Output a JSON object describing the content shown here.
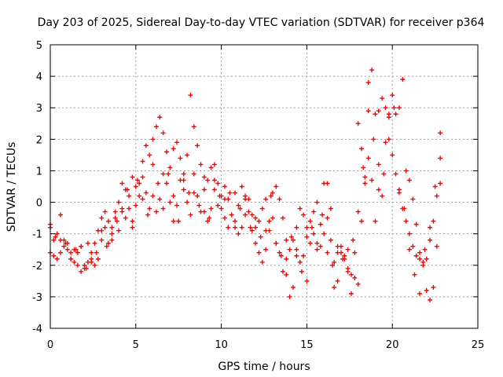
{
  "chart_data": {
    "type": "scatter",
    "title": "Day 203 of 2025, Sidereal Day-to-day VTEC variation (SDTVAR) for receiver p364",
    "xlabel": "GPS time / hours",
    "ylabel": "SDTVAR / TECUs",
    "xlim": [
      0,
      25
    ],
    "ylim": [
      -4,
      5
    ],
    "xticks": [
      0,
      5,
      10,
      15,
      20,
      25
    ],
    "yticks": [
      -4,
      -3,
      -2,
      -1,
      0,
      1,
      2,
      3,
      4,
      5
    ],
    "grid": true,
    "marker": "+",
    "series": [
      {
        "name": "SDTVAR",
        "color": "#ff0000",
        "x": [
          0.0,
          0.2,
          0.4,
          0.6,
          0.8,
          1.0,
          1.2,
          1.4,
          1.6,
          1.8,
          2.0,
          2.2,
          2.4,
          2.6,
          2.8,
          3.0,
          3.2,
          3.4,
          3.6,
          3.8,
          4.0,
          4.2,
          4.4,
          4.6,
          4.8,
          5.0,
          5.2,
          5.4,
          5.6,
          5.8,
          6.0,
          6.2,
          6.4,
          6.6,
          6.8,
          7.0,
          7.2,
          7.4,
          7.6,
          7.8,
          8.0,
          8.2,
          8.4,
          8.6,
          8.8,
          9.0,
          9.2,
          9.4,
          9.6,
          9.8,
          10.0,
          10.2,
          10.4,
          10.6,
          10.8,
          11.0,
          11.2,
          11.4,
          11.6,
          11.8,
          12.0,
          12.2,
          12.4,
          12.6,
          12.8,
          13.0,
          13.2,
          13.4,
          13.6,
          13.8,
          14.0,
          14.2,
          14.4,
          14.6,
          14.8,
          15.0,
          15.2,
          15.4,
          15.6,
          15.8,
          16.0,
          16.2,
          16.4,
          16.6,
          16.8,
          17.0,
          17.2,
          17.4,
          17.6,
          17.8,
          18.0,
          18.2,
          18.4,
          18.6,
          18.8,
          19.0,
          19.2,
          19.4,
          19.6,
          19.8,
          20.0,
          20.2,
          20.4,
          20.6,
          20.8,
          21.0,
          21.2,
          21.4,
          21.6,
          21.8,
          22.0,
          22.2,
          22.4,
          22.6,
          22.8,
          0.0,
          0.2,
          0.4,
          0.6,
          0.8,
          1.0,
          1.2,
          1.4,
          1.6,
          1.8,
          2.0,
          2.2,
          2.4,
          2.6,
          2.8,
          3.0,
          3.2,
          3.4,
          3.6,
          3.8,
          4.0,
          4.2,
          4.4,
          4.6,
          4.8,
          5.0,
          5.2,
          5.4,
          5.6,
          5.8,
          6.0,
          6.2,
          6.4,
          6.6,
          6.8,
          7.0,
          7.2,
          7.4,
          7.6,
          7.8,
          8.0,
          8.2,
          8.4,
          8.6,
          8.8,
          9.0,
          9.2,
          9.4,
          9.6,
          9.8,
          10.0,
          10.2,
          10.4,
          10.6,
          10.8,
          11.0,
          11.2,
          11.4,
          11.6,
          11.8,
          12.0,
          12.2,
          12.4,
          12.6,
          12.8,
          13.0,
          13.2,
          13.4,
          13.6,
          13.8,
          14.0,
          14.2,
          14.4,
          14.6,
          14.8,
          15.0,
          15.2,
          15.4,
          15.6,
          15.8,
          16.0,
          16.2,
          16.4,
          16.6,
          16.8,
          17.0,
          17.2,
          17.4,
          17.6,
          17.8,
          18.0,
          18.2,
          18.4,
          18.6,
          18.8,
          19.0,
          19.2,
          19.4,
          19.6,
          19.8,
          20.0,
          20.2,
          20.4,
          20.6,
          20.8,
          21.0,
          21.2,
          21.4,
          21.6,
          21.8,
          22.0,
          22.2,
          22.4,
          22.6,
          22.8,
          0.0,
          0.3,
          0.6,
          0.9,
          1.2,
          1.5,
          1.8,
          2.1,
          2.4,
          2.7,
          3.0,
          3.3,
          3.6,
          3.9,
          4.2,
          4.5,
          4.8,
          5.1,
          5.4,
          5.7,
          6.0,
          6.3,
          6.6,
          6.9,
          7.2,
          7.5,
          7.8,
          8.1,
          8.4,
          8.7,
          9.0,
          9.3,
          9.6,
          9.9,
          10.2,
          10.5,
          10.8,
          11.1,
          11.4,
          11.7,
          12.0,
          12.3,
          12.6,
          12.9,
          13.2,
          13.5,
          13.8,
          14.1,
          14.4,
          14.7,
          15.0,
          15.3,
          15.6,
          15.9,
          16.2,
          16.5,
          16.8,
          17.1,
          17.4,
          17.7,
          18.0,
          18.3,
          18.6,
          18.9,
          19.2,
          19.5,
          19.8,
          20.1,
          20.4,
          20.7,
          21.0,
          21.3,
          21.6,
          21.9,
          22.2,
          22.5,
          22.8
        ],
        "y": [
          -0.7,
          -1.2,
          -1.0,
          -0.4,
          -1.2,
          -1.5,
          -1.8,
          -1.9,
          -1.6,
          -1.4,
          -2.1,
          -1.9,
          -1.6,
          -1.3,
          -0.9,
          -0.5,
          -0.3,
          -0.6,
          -0.8,
          -0.3,
          0.0,
          0.6,
          0.4,
          -0.2,
          -0.6,
          -0.1,
          0.6,
          1.3,
          1.8,
          1.5,
          2.0,
          2.4,
          2.7,
          2.2,
          1.6,
          1.1,
          1.7,
          1.9,
          1.4,
          0.9,
          1.5,
          3.4,
          2.4,
          1.8,
          1.2,
          0.8,
          0.7,
          1.1,
          1.2,
          0.6,
          -0.2,
          0.5,
          0.1,
          -0.4,
          -0.8,
          -1.0,
          0.5,
          0.2,
          -0.3,
          -0.9,
          -1.3,
          -1.6,
          -1.9,
          -1.5,
          -0.6,
          0.3,
          0.5,
          0.1,
          -0.5,
          -1.2,
          -3.0,
          -2.7,
          -1.5,
          -0.2,
          -0.4,
          -0.8,
          -0.6,
          -0.3,
          0.0,
          -0.7,
          0.6,
          -0.5,
          -1.2,
          -2.7,
          -2.5,
          -1.6,
          -1.8,
          -1.5,
          -2.9,
          -1.6,
          2.5,
          1.7,
          0.6,
          3.8,
          4.2,
          2.8,
          2.9,
          3.3,
          3.0,
          2.7,
          3.4,
          2.8,
          3.0,
          3.9,
          -0.6,
          -1.0,
          -1.4,
          -1.7,
          -1.8,
          -2.0,
          -2.8,
          -3.1,
          -2.7,
          -1.4,
          2.2,
          -1.6,
          -1.7,
          -1.8,
          -1.2,
          -1.4,
          -1.3,
          -1.6,
          -1.5,
          -2.0,
          -2.2,
          -2.0,
          -1.3,
          -1.9,
          -2.0,
          -1.8,
          -1.2,
          -0.8,
          -1.3,
          -1.0,
          -0.5,
          -0.9,
          -0.2,
          -0.5,
          0.2,
          0.8,
          0.5,
          0.2,
          0.8,
          0.3,
          -0.2,
          0.2,
          -0.3,
          0.1,
          0.9,
          0.6,
          0.0,
          -0.6,
          -0.1,
          0.7,
          0.4,
          0.0,
          -0.4,
          0.3,
          0.2,
          -0.3,
          -0.3,
          -0.6,
          -0.2,
          0.4,
          -0.1,
          0.2,
          0.1,
          -0.8,
          -0.4,
          0.3,
          -0.1,
          -0.8,
          -0.4,
          0.1,
          -0.4,
          -0.8,
          -0.6,
          -0.2,
          0.1,
          -0.9,
          -0.5,
          -1.3,
          -1.6,
          -2.2,
          -1.8,
          -1.5,
          -1.2,
          -0.8,
          -1.9,
          -1.7,
          -2.5,
          -1.3,
          -1.0,
          -1.3,
          -1.4,
          -1.0,
          0.6,
          -0.2,
          -1.9,
          -1.6,
          -1.4,
          -1.7,
          -2.2,
          -2.3,
          -2.4,
          -0.3,
          -0.6,
          0.8,
          1.4,
          0.7,
          -0.6,
          0.4,
          0.2,
          1.9,
          2.0,
          1.5,
          0.9,
          0.3,
          -0.2,
          1.0,
          0.7,
          0.1,
          -0.7,
          -1.6,
          -1.9,
          -1.8,
          -1.2,
          -0.6,
          0.2,
          0.6,
          -0.8,
          -1.1,
          -1.6,
          -1.3,
          -1.8,
          -1.5,
          -1.4,
          -2.1,
          -1.8,
          -1.6,
          -0.9,
          -1.4,
          -1.2,
          -0.6,
          -0.3,
          0.4,
          -0.8,
          0.7,
          0.1,
          -0.4,
          1.2,
          0.6,
          -0.2,
          0.9,
          0.2,
          -0.6,
          0.7,
          0.3,
          0.9,
          -0.1,
          0.4,
          -0.5,
          0.7,
          0.2,
          -0.5,
          0.3,
          -0.6,
          -0.2,
          0.1,
          -0.8,
          -0.5,
          -1.1,
          -0.9,
          0.2,
          -1.3,
          -1.7,
          -2.3,
          -1.1,
          -1.7,
          -2.2,
          -1.1,
          -0.8,
          -1.5,
          -0.4,
          -1.6,
          -2.0,
          -1.4,
          -1.8,
          -2.1,
          -1.2,
          -2.6,
          1.1,
          2.9,
          2.0,
          1.2,
          0.9,
          2.8,
          3.0,
          0.4,
          -0.2,
          -1.5,
          -2.3,
          -2.9,
          -1.5,
          -0.8,
          0.5,
          1.4
        ]
      }
    ]
  }
}
